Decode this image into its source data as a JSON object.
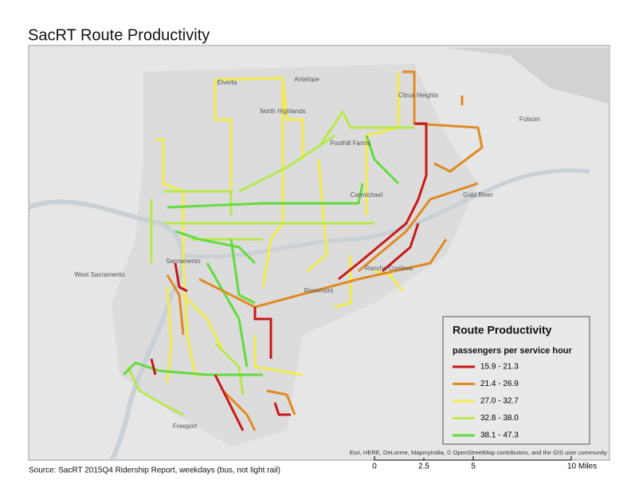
{
  "title": "SacRT Route Productivity",
  "source": "Source: SacRT 2015Q4 Ridership Report, weekdays (bus, not light rail)",
  "attribution": "Esri, HERE, DeLorme, MapmyIndia, © OpenStreetMap contributors, and the GIS user community",
  "legend": {
    "title": "Route Productivity",
    "subtitle": "passengers per service hour",
    "items": [
      {
        "label": "15.9 - 21.3",
        "color": "#c81818"
      },
      {
        "label": "21.4 - 26.9",
        "color": "#e08a22"
      },
      {
        "label": "27.0 - 32.7",
        "color": "#f3ec4c"
      },
      {
        "label": "32.8 - 38.0",
        "color": "#b8e84c"
      },
      {
        "label": "38.1 - 47.3",
        "color": "#62dc3c"
      }
    ]
  },
  "scale_bar": {
    "labels": [
      "0",
      "2.5",
      "5",
      "10 Miles"
    ]
  },
  "places": [
    "Elverta",
    "Antelope",
    "Citrus Heights",
    "North Highlands",
    "Folsom",
    "Carmichael",
    "Rancho Cordova",
    "Sacramento",
    "West Sacramento",
    "Foothill Farms",
    "Gold River",
    "Rosemont",
    "Freeport"
  ]
}
